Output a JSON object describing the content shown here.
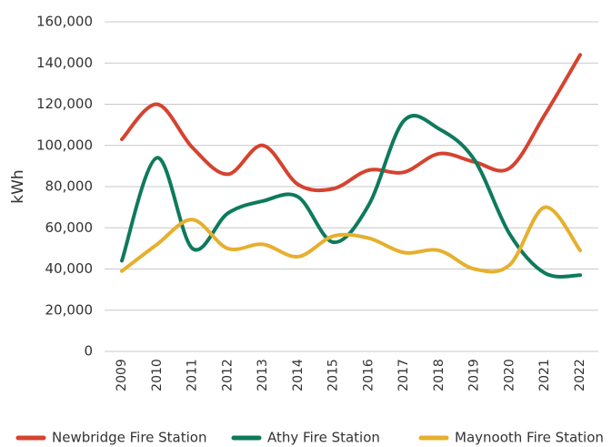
{
  "chart_data": {
    "type": "line",
    "ylabel": "kWh",
    "categories": [
      "2009",
      "2010",
      "2011",
      "2012",
      "2013",
      "2014",
      "2015",
      "2016",
      "2017",
      "2018",
      "2019",
      "2020",
      "2021",
      "2022"
    ],
    "series": [
      {
        "name": "Newbridge Fire Station",
        "color": "#d5432f",
        "values": [
          103000,
          120000,
          99000,
          86000,
          100000,
          81000,
          79000,
          88000,
          87000,
          96000,
          92000,
          89000,
          115000,
          144000
        ]
      },
      {
        "name": "Athy Fire Station",
        "color": "#0e7a5c",
        "values": [
          44000,
          94000,
          50000,
          67000,
          73000,
          75000,
          53000,
          71000,
          112000,
          108000,
          93000,
          57000,
          38000,
          37000
        ]
      },
      {
        "name": "Maynooth Fire Station",
        "color": "#e6b02e",
        "values": [
          39000,
          52000,
          64000,
          50000,
          52000,
          46000,
          56000,
          55000,
          48000,
          49000,
          40000,
          42000,
          70000,
          49000
        ]
      }
    ],
    "ylim": [
      0,
      160000
    ],
    "yticks": [
      0,
      {
        "value": 20000,
        "label": "20,000"
      },
      {
        "value": 40000,
        "label": "40,000"
      },
      {
        "value": 60000,
        "label": "60,000"
      },
      {
        "value": 80000,
        "label": "80,000"
      },
      {
        "value": 100000,
        "label": "100,000"
      },
      {
        "value": 120000,
        "label": "120,000"
      },
      {
        "value": 140000,
        "label": "140,000"
      },
      {
        "value": 160000,
        "label": "160,000"
      }
    ],
    "grid": true,
    "legend": "bottom"
  }
}
